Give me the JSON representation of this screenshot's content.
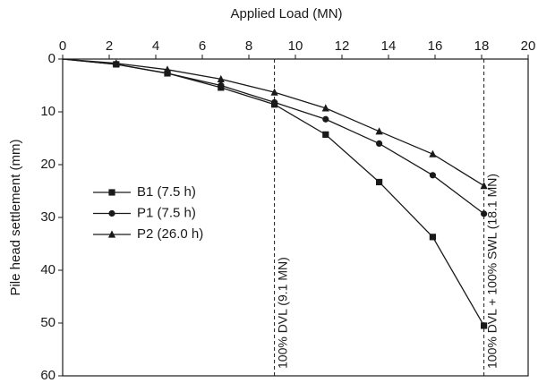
{
  "chart_data": {
    "type": "line",
    "x_label": "Applied Load (MN)",
    "y_label": "Pile head settlement (mm)",
    "x": [
      0,
      2.3,
      4.5,
      6.8,
      9.1,
      11.3,
      13.6,
      15.9,
      18.1
    ],
    "series": [
      {
        "name": "B1 (7.5 h)",
        "color": "#1a1a1a",
        "marker": "square",
        "values": [
          0,
          1,
          2.7,
          5.4,
          8.6,
          14.3,
          23.3,
          33.7,
          50.5
        ]
      },
      {
        "name": "P1 (7.5 h)",
        "color": "#1a1a1a",
        "marker": "circle",
        "values": [
          0,
          1,
          2.7,
          5,
          8.2,
          11.4,
          16,
          22,
          29.3
        ]
      },
      {
        "name": "P2 (26.0 h)",
        "color": "#1a1a1a",
        "marker": "triangle",
        "values": [
          0,
          0.8,
          2,
          3.8,
          6.3,
          9.3,
          13.7,
          18,
          24
        ]
      }
    ],
    "xlim": [
      0,
      20
    ],
    "xticks": [
      0,
      2,
      4,
      6,
      8,
      10,
      12,
      14,
      16,
      18,
      20
    ],
    "ylim": [
      0,
      60
    ],
    "yticks": [
      0,
      10,
      20,
      30,
      40,
      50,
      60
    ],
    "y_inverted": true,
    "x_axis_position": "top",
    "legend": "left",
    "reference_lines": [
      {
        "x": 9.1,
        "label": "100% DVL (9.1 MN)"
      },
      {
        "x": 18.1,
        "label": "100% DVL + 100% SWL (18.1 MN)"
      }
    ]
  }
}
